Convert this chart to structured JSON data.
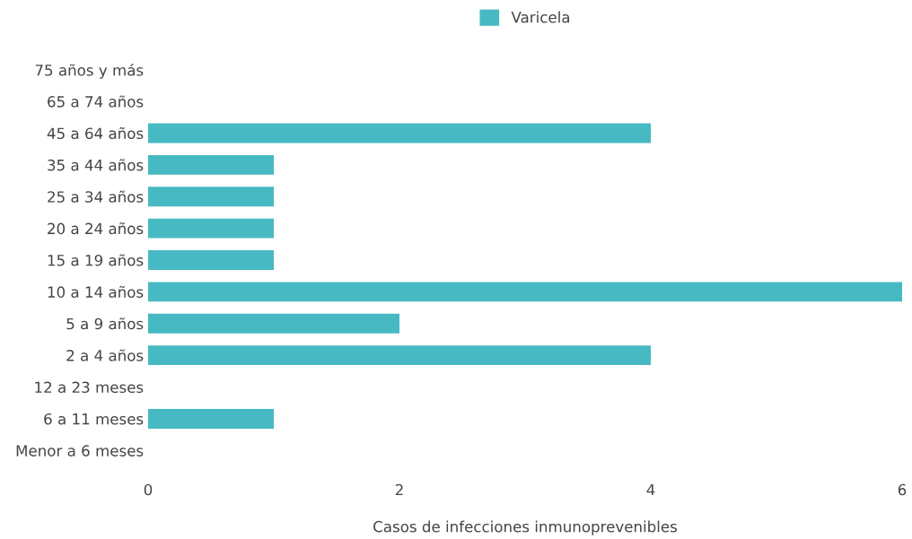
{
  "chart_data": {
    "type": "bar",
    "orientation": "horizontal",
    "xlabel": "Casos de infecciones inmunoprevenibles",
    "categories": [
      "75 años y más",
      "65 a 74 años",
      "45 a 64 años",
      "35 a 44 años",
      "25 a 34 años",
      "20 a 24 años",
      "15 a 19 años",
      "10 a 14 años",
      "5 a 9 años",
      "2 a 4 años",
      "12 a 23 meses",
      "6 a 11 meses",
      "Menor a 6 meses"
    ],
    "series": [
      {
        "name": "Varicela",
        "color": "#47b9c3",
        "values": [
          0,
          0,
          4,
          1,
          1,
          1,
          1,
          6,
          2,
          4,
          0,
          1,
          0
        ]
      }
    ],
    "xlim": [
      0,
      6
    ],
    "xticks": [
      0,
      2,
      4,
      6
    ],
    "grid": false,
    "legend": "top"
  }
}
